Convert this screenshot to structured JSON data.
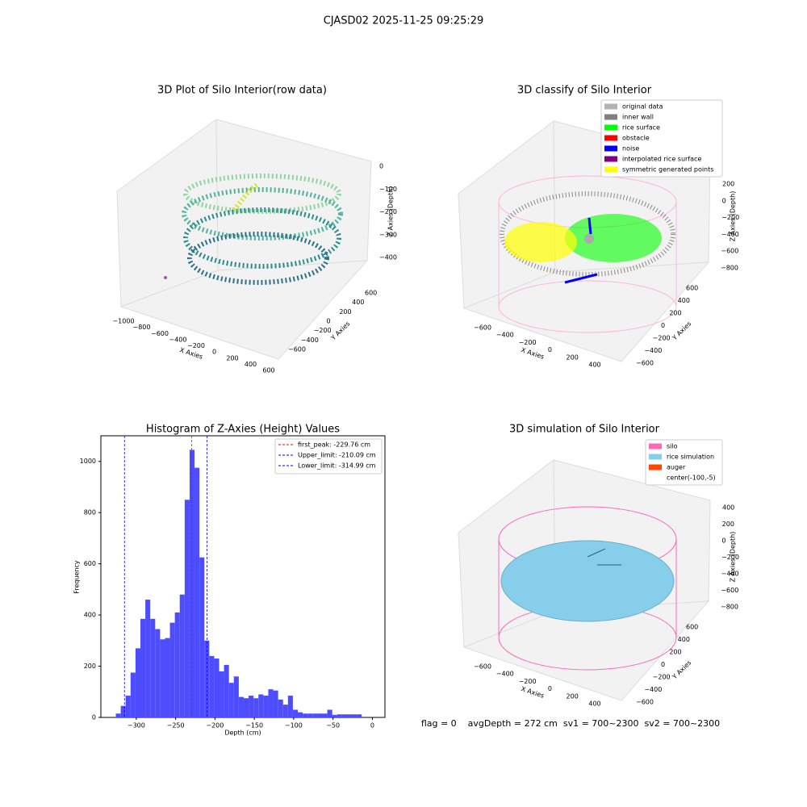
{
  "suptitle": "CJASD02 2025-11-25 09:25:29",
  "chart_data": [
    {
      "type": "scatter3d",
      "title": "3D Plot of Silo Interior(row data)",
      "xlabel": "X Axies",
      "ylabel": "Y Axies",
      "zlabel": "Z Axies (Depth)",
      "xticks": [
        -1000,
        -800,
        -600,
        -400,
        -200,
        0,
        200,
        400,
        600
      ],
      "yticks": [
        -600,
        -400,
        -200,
        0,
        200,
        400,
        600
      ],
      "zticks": [
        0,
        -100,
        -200,
        -300,
        -400
      ]
    },
    {
      "type": "scatter3d",
      "title": "3D classify of Silo Interior",
      "xlabel": "X Axies",
      "ylabel": "Y Axies",
      "zlabel": "Z Axies (Depth)",
      "xticks": [
        -600,
        -400,
        -200,
        0,
        200,
        400
      ],
      "yticks": [
        -600,
        -400,
        -200,
        0,
        200,
        400,
        600
      ],
      "zticks": [
        200,
        0,
        -200,
        -400,
        -600,
        -800
      ],
      "series": [
        {
          "name": "original data",
          "color": "#b3b3b3"
        },
        {
          "name": "inner wall",
          "color": "#808080"
        },
        {
          "name": "rice surface",
          "color": "#00ff00"
        },
        {
          "name": "obstacle",
          "color": "#ff0000"
        },
        {
          "name": "noise",
          "color": "#0000ff"
        },
        {
          "name": "interpolated rice surface",
          "color": "#800080"
        },
        {
          "name": "symmetric generated points",
          "color": "#ffff00"
        }
      ]
    },
    {
      "type": "histogram",
      "title": "Histogram of Z-Axies (Height) Values",
      "xlabel": "Depth (cm)",
      "ylabel": "Frequency",
      "color": "#4d4dff",
      "bins": [
        -326,
        -319.75,
        -313.5,
        -307.25,
        -301,
        -294.75,
        -288.5,
        -282.25,
        -276,
        -269.75,
        -263.5,
        -257.25,
        -251,
        -244.75,
        -238.5,
        -232.25,
        -226,
        -219.75,
        -213.5,
        -207.25,
        -201,
        -194.75,
        -188.5,
        -182.25,
        -176,
        -169.75,
        -163.5,
        -157.25,
        -151,
        -144.75,
        -138.5,
        -132.25,
        -126,
        -119.75,
        -113.5,
        -107.25,
        -101,
        -94.75,
        -88.5,
        -82.25,
        -76,
        -69.75,
        -63.5,
        -57.25,
        -51,
        -44.75,
        -38.5,
        -32.25,
        -26,
        -19.75,
        -13.5
      ],
      "values": [
        15,
        45,
        85,
        175,
        270,
        385,
        460,
        385,
        345,
        305,
        310,
        370,
        410,
        480,
        850,
        1045,
        975,
        625,
        300,
        240,
        230,
        180,
        205,
        135,
        160,
        80,
        75,
        85,
        75,
        90,
        85,
        110,
        105,
        70,
        50,
        85,
        30,
        20,
        15,
        15,
        15,
        15,
        15,
        30,
        10,
        12,
        12,
        12,
        12,
        12
      ],
      "xlim": [
        -345,
        16
      ],
      "ylim": [
        0,
        1100
      ],
      "xticks": [
        -300,
        -250,
        -200,
        -150,
        -100,
        -50,
        0
      ],
      "yticks": [
        0,
        200,
        400,
        600,
        800,
        1000
      ],
      "vlines": [
        {
          "name": "first_peak: -229.76 cm",
          "value": -229.76,
          "color": "#ff0000"
        },
        {
          "name": "Upper_limit: -210.09 cm",
          "value": -210.09,
          "color": "#0000ff"
        },
        {
          "name": "Lower_limit: -314.99 cm",
          "value": -314.99,
          "color": "#0000ff"
        }
      ]
    },
    {
      "type": "surface3d",
      "title": "3D simulation of Silo Interior",
      "xlabel": "X Axies",
      "ylabel": "Y Axies",
      "zlabel": "Z Axies (Depth)",
      "xticks": [
        -600,
        -400,
        -200,
        0,
        200,
        400
      ],
      "yticks": [
        -600,
        -400,
        -200,
        0,
        200,
        400,
        600
      ],
      "zticks": [
        400,
        200,
        0,
        -200,
        -400,
        -600,
        -800
      ],
      "series": [
        {
          "name": "silo",
          "color": "#ff69b4"
        },
        {
          "name": "rice simulation",
          "color": "#87ceeb"
        },
        {
          "name": "auger",
          "color": "#ff4500"
        },
        {
          "name": "center(-100,-5)",
          "color": null
        }
      ],
      "status": "flag = 0    avgDepth = 272 cm  sv1 = 700~2300  sv2 = 700~2300"
    }
  ]
}
